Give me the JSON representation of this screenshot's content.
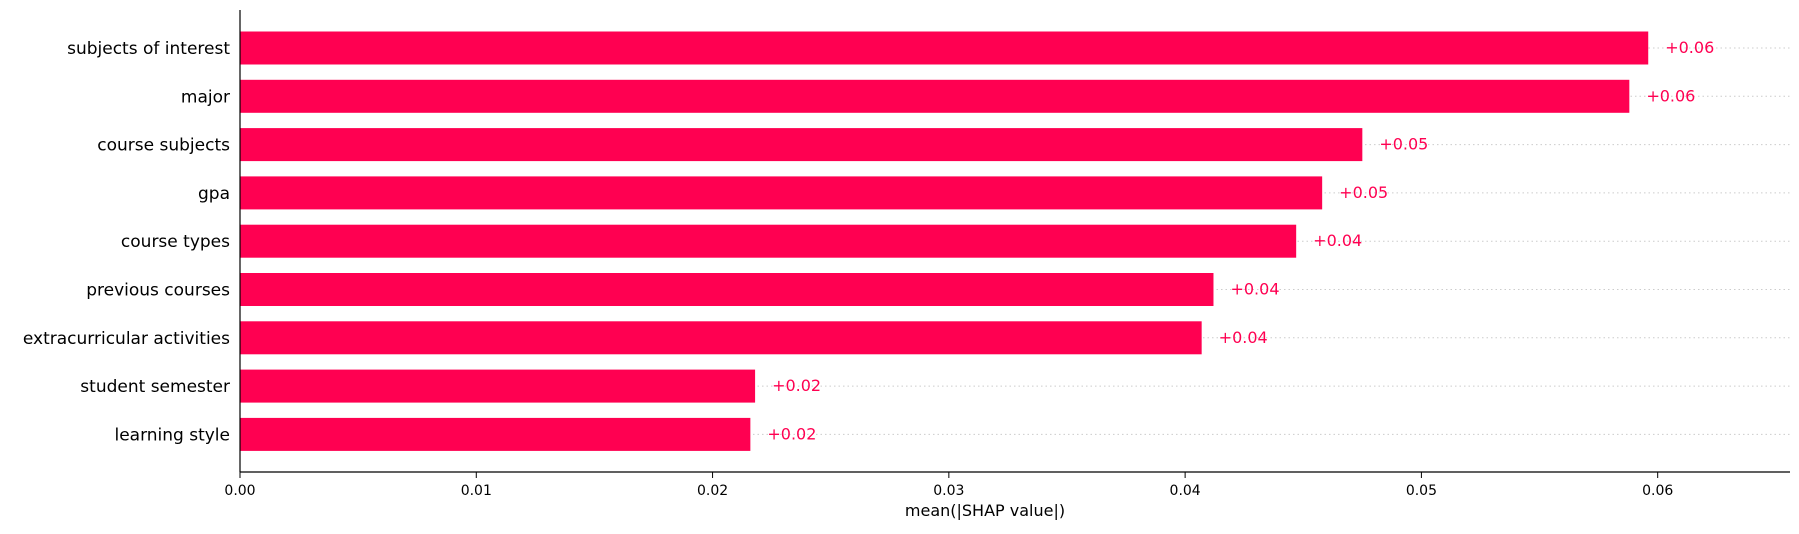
{
  "chart_data": {
    "type": "bar",
    "orientation": "horizontal",
    "categories": [
      "subjects of interest",
      "major",
      "course subjects",
      "gpa",
      "course types",
      "previous courses",
      "extracurricular activities",
      "student semester",
      "learning style"
    ],
    "values": [
      0.0596,
      0.0588,
      0.0475,
      0.0458,
      0.0447,
      0.0412,
      0.0407,
      0.0218,
      0.0216
    ],
    "value_labels": [
      "+0.06",
      "+0.06",
      "+0.05",
      "+0.05",
      "+0.04",
      "+0.04",
      "+0.04",
      "+0.02",
      "+0.02"
    ],
    "title": "",
    "xlabel": "mean(|SHAP value|)",
    "ylabel": "",
    "xlim": [
      0,
      0.0656
    ],
    "xticks": [
      0.0,
      0.01,
      0.02,
      0.03,
      0.04,
      0.05,
      0.06
    ],
    "xtick_labels": [
      "0.00",
      "0.01",
      "0.02",
      "0.03",
      "0.04",
      "0.05",
      "0.06"
    ],
    "grid": "dotted row guides",
    "colors": {
      "bar": "#ff0051",
      "label": "#ff0051",
      "axis": "#000000",
      "grid": "#cccccc"
    }
  }
}
